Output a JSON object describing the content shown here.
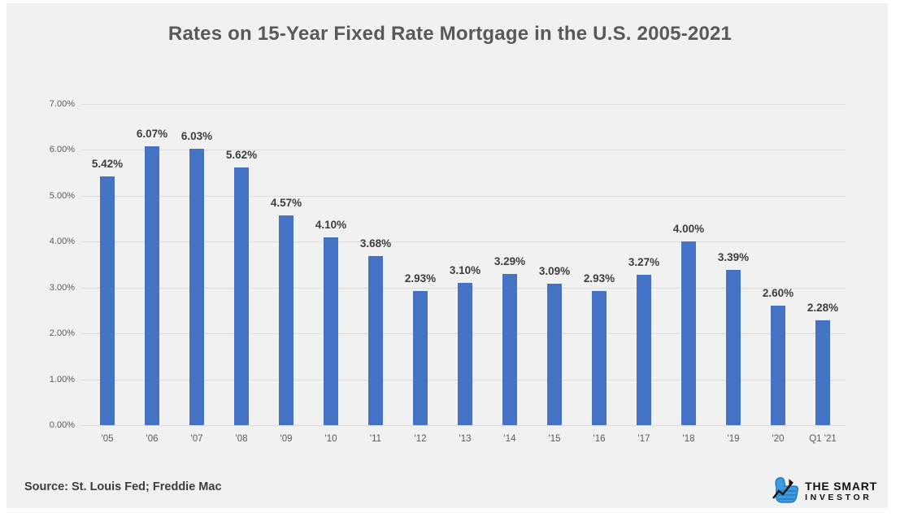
{
  "page": {
    "title": "Rates on 15-Year Fixed Rate Mortgage in the U.S. 2005-2021",
    "source": "Source: St. Louis Fed; Freddie Mac"
  },
  "logo": {
    "line1": "THE SMART",
    "line2": "INVESTOR",
    "icon": "thumbs-up-with-chart-arrow"
  },
  "colors": {
    "bar": "#4472c4",
    "panel_bg": "#f1f1f2",
    "grid": "#dcdcde",
    "title_text": "#595959",
    "axis_text": "#595959",
    "value_label_text": "#3d3d3d",
    "logo_blue": "#3d9ae0"
  },
  "chart_data": {
    "type": "bar",
    "title": "Rates on 15-Year Fixed Rate Mortgage in the U.S. 2005-2021",
    "categories": [
      "'05",
      "'06",
      "'07",
      "'08",
      "'09",
      "'10",
      "'11",
      "'12",
      "'13",
      "'14",
      "'15",
      "'16",
      "'17",
      "'18",
      "'19",
      "'20",
      "Q1 '21"
    ],
    "values": [
      5.42,
      6.07,
      6.03,
      5.62,
      4.57,
      4.1,
      3.68,
      2.93,
      3.1,
      3.29,
      3.09,
      2.93,
      3.27,
      4.0,
      3.39,
      2.6,
      2.28
    ],
    "value_labels": [
      "5.42%",
      "6.07%",
      "6.03%",
      "5.62%",
      "4.57%",
      "4.10%",
      "3.68%",
      "2.93%",
      "3.10%",
      "3.29%",
      "3.09%",
      "2.93%",
      "3.27%",
      "4.00%",
      "3.39%",
      "2.60%",
      "2.28%"
    ],
    "xlabel": "",
    "ylabel": "",
    "ylim": [
      0,
      7
    ],
    "ytick_step": 1,
    "ytick_labels": [
      "0.00%",
      "1.00%",
      "2.00%",
      "3.00%",
      "4.00%",
      "5.00%",
      "6.00%",
      "7.00%"
    ],
    "grid": true,
    "legend": false,
    "data_labels": true
  }
}
